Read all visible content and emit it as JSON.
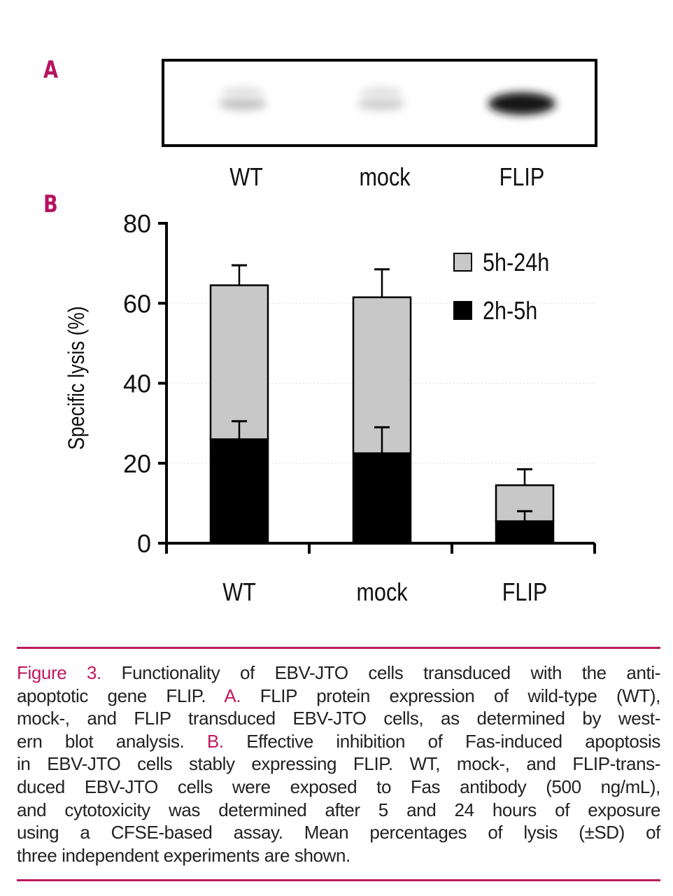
{
  "panel_a": {
    "label": "A",
    "lanes": [
      "WT",
      "mock",
      "FLIP"
    ],
    "band_intensity": [
      0.25,
      0.2,
      1.0
    ]
  },
  "panel_b": {
    "label": "B"
  },
  "chart_data": {
    "type": "bar",
    "stacked": true,
    "categories": [
      "WT",
      "mock",
      "FLIP"
    ],
    "ylabel": "Specific lysis (%)",
    "xlabel": "",
    "ylim": [
      0,
      80
    ],
    "yticks": [
      0,
      20,
      40,
      60,
      80
    ],
    "grid": "horizontal dotted, faint",
    "legend_position": "top-right",
    "series": [
      {
        "name": "2h-5h",
        "color": "#000000",
        "values": [
          26,
          22.5,
          5.5
        ],
        "error": [
          4.5,
          6.5,
          2.5
        ]
      },
      {
        "name": "5h-24h",
        "color": "#c8c8c8",
        "values": [
          38.5,
          39,
          9
        ],
        "error": [
          5,
          7,
          4
        ]
      }
    ],
    "legend_order": [
      "5h-24h",
      "2h-5h"
    ]
  },
  "caption": {
    "accent": "#c0185f",
    "lines": [
      [
        {
          "text": "Figure 3.",
          "accent": true
        },
        {
          "text": " Functionality of EBV-JTO cells transduced with the anti-"
        }
      ],
      [
        {
          "text": "apoptotic gene FLIP. "
        },
        {
          "text": "A.",
          "accent": true
        },
        {
          "text": " FLIP protein expression of wild-type (WT),"
        }
      ],
      [
        {
          "text": "mock-, and FLIP transduced EBV-JTO cells, as determined by west-"
        }
      ],
      [
        {
          "text": "ern blot analysis. "
        },
        {
          "text": "B.",
          "accent": true
        },
        {
          "text": " Effective inhibition of Fas-induced apoptosis"
        }
      ],
      [
        {
          "text": "in EBV-JTO cells stably expressing FLIP. WT, mock-, and FLIP-trans-"
        }
      ],
      [
        {
          "text": "duced EBV-JTO cells were exposed to Fas antibody (500 ng/mL),"
        }
      ],
      [
        {
          "text": "and cytotoxicity was determined after 5 and 24 hours of exposure"
        }
      ],
      [
        {
          "text": "using a CFSE-based assay. Mean percentages of lysis (±SD) of"
        }
      ],
      [
        {
          "text": "three independent experiments are shown."
        }
      ]
    ]
  }
}
